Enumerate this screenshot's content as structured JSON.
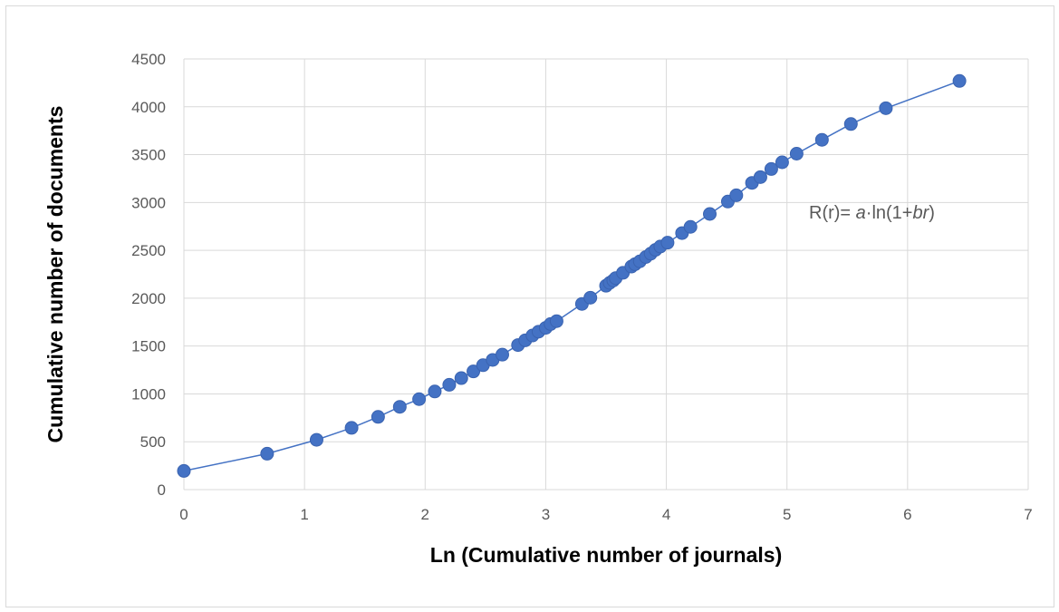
{
  "chart_data": {
    "type": "scatter",
    "title": "",
    "xlabel": "Ln (Cumulative number of journals)",
    "ylabel": "Cumulative number of documents",
    "xlim": [
      0,
      7
    ],
    "ylim": [
      0,
      4500
    ],
    "x_ticks": [
      "0",
      "1",
      "2",
      "3",
      "4",
      "5",
      "6",
      "7"
    ],
    "y_ticks": [
      "0",
      "500",
      "1000",
      "1500",
      "2000",
      "2500",
      "3000",
      "3500",
      "4000",
      "4500"
    ],
    "grid": true,
    "legend": "none",
    "annotation": {
      "prefix": "R(r)= ",
      "a": "a",
      "mid": "·ln(1+",
      "b": "b",
      "r": "r",
      "suffix": ")"
    },
    "colors": {
      "marker": "#4472c4",
      "line": "#4472c4",
      "grid": "#d9d9d9"
    },
    "series": [
      {
        "points": [
          [
            0,
            195
          ],
          [
            0.69,
            375
          ],
          [
            1.1,
            520
          ],
          [
            1.39,
            645
          ],
          [
            1.61,
            760
          ],
          [
            1.79,
            865
          ],
          [
            1.95,
            945
          ],
          [
            2.08,
            1025
          ],
          [
            2.2,
            1095
          ],
          [
            2.3,
            1165
          ],
          [
            2.4,
            1235
          ],
          [
            2.48,
            1300
          ],
          [
            2.56,
            1355
          ],
          [
            2.64,
            1410
          ],
          [
            2.77,
            1510
          ],
          [
            2.83,
            1560
          ],
          [
            2.89,
            1610
          ],
          [
            2.94,
            1650
          ],
          [
            3.0,
            1690
          ],
          [
            3.04,
            1730
          ],
          [
            3.09,
            1760
          ],
          [
            3.3,
            1940
          ],
          [
            3.37,
            2005
          ],
          [
            3.5,
            2130
          ],
          [
            3.53,
            2160
          ],
          [
            3.56,
            2185
          ],
          [
            3.58,
            2210
          ],
          [
            3.64,
            2265
          ],
          [
            3.71,
            2330
          ],
          [
            3.74,
            2355
          ],
          [
            3.78,
            2385
          ],
          [
            3.83,
            2430
          ],
          [
            3.87,
            2465
          ],
          [
            3.91,
            2505
          ],
          [
            3.95,
            2540
          ],
          [
            4.01,
            2580
          ],
          [
            4.13,
            2680
          ],
          [
            4.2,
            2745
          ],
          [
            4.36,
            2880
          ],
          [
            4.51,
            3010
          ],
          [
            4.58,
            3075
          ],
          [
            4.71,
            3205
          ],
          [
            4.78,
            3265
          ],
          [
            4.87,
            3350
          ],
          [
            4.96,
            3420
          ],
          [
            5.08,
            3510
          ],
          [
            5.29,
            3655
          ],
          [
            5.53,
            3820
          ],
          [
            5.82,
            3985
          ],
          [
            6.43,
            4270
          ]
        ]
      }
    ]
  }
}
